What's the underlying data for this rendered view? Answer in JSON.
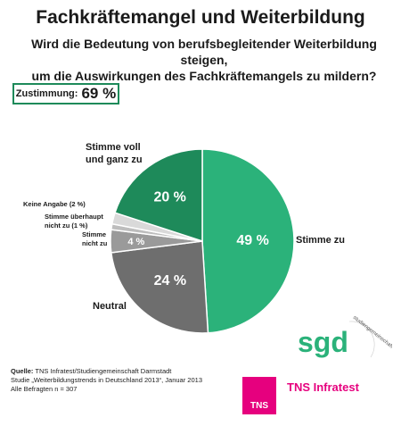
{
  "header": {
    "title": "Fachkräftemangel und Weiterbildung",
    "question_line1": "Wird die Bedeutung von berufsbegleitender Weiterbildung steigen,",
    "question_line2": "um die Auswirkungen des Fachkräftemangels zu mildern?"
  },
  "agreement": {
    "label": "Zustimmung:",
    "value": "69 %"
  },
  "chart_data": {
    "type": "pie",
    "slices": [
      {
        "name": "Stimme zu",
        "value": 49,
        "label": "49 %",
        "color": "#2bb27a"
      },
      {
        "name": "Neutral",
        "value": 24,
        "label": "24 %",
        "color": "#6e6e6e"
      },
      {
        "name": "Stimme nicht zu",
        "value": 4,
        "label": "4 %",
        "color": "#9a9a9a"
      },
      {
        "name": "Stimme überhaupt nicht zu (1 %)",
        "value": 1,
        "label": "",
        "color": "#bdbdbd"
      },
      {
        "name": "Keine Angabe (2 %)",
        "value": 2,
        "label": "",
        "color": "#d9d9d9"
      },
      {
        "name": "Stimme voll und ganz zu",
        "value": 20,
        "label": "20 %",
        "color": "#1e8a5a"
      }
    ],
    "category_labels": {
      "stimme_zu": "Stimme zu",
      "neutral": "Neutral",
      "nicht_zu_1": "Stimme",
      "nicht_zu_2": "nicht zu",
      "ueberhaupt_1": "Stimme überhaupt",
      "ueberhaupt_2": "nicht zu (1 %)",
      "keine_angabe": "Keine Angabe (2 %)",
      "voll_1": "Stimme voll",
      "voll_2": "und ganz zu"
    }
  },
  "footer": {
    "source_label": "Quelle:",
    "source_text": "TNS Infratest/Studiengemeinschaft Darmstadt",
    "study": "Studie „Weiterbildungstrends in Deutschland 2013“, Januar 2013",
    "sample": "Alle Befragten n = 307"
  },
  "logos": {
    "sgd_mark": "sgd",
    "sgd_text": "studiengemeinschaft darmstadt",
    "tns_box": "TNS",
    "tns_name": "TNS Infratest",
    "sgd_color": "#2bb27a",
    "tns_color": "#e6007e"
  }
}
